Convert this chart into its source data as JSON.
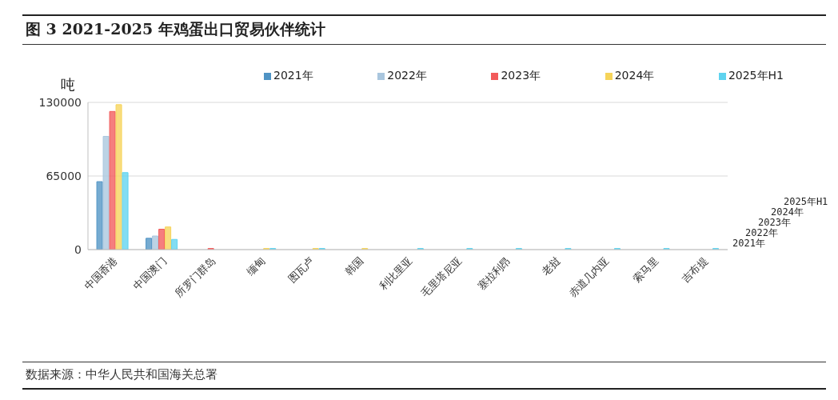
{
  "chart_data": {
    "type": "bar",
    "title": "图 3 2021-2025 年鸡蛋出口贸易伙伴统计",
    "ylabel": "吨",
    "categories": [
      "中国香港",
      "中国澳门",
      "所罗门群岛",
      "缅甸",
      "图瓦卢",
      "韩国",
      "利比里亚",
      "毛里塔尼亚",
      "塞拉利昂",
      "老挝",
      "赤道几内亚",
      "索马里",
      "吉布提"
    ],
    "series": [
      {
        "name": "2021年",
        "color": "#4f93c4",
        "values": [
          60000,
          10000,
          null,
          null,
          null,
          null,
          null,
          null,
          null,
          null,
          null,
          null,
          null
        ]
      },
      {
        "name": "2022年",
        "color": "#a9c6de",
        "values": [
          100000,
          12000,
          null,
          null,
          null,
          null,
          null,
          null,
          null,
          null,
          null,
          null,
          null
        ]
      },
      {
        "name": "2023年",
        "color": "#f25a5a",
        "values": [
          122000,
          18000,
          1000,
          null,
          null,
          null,
          null,
          null,
          null,
          null,
          null,
          null,
          null
        ]
      },
      {
        "name": "2024年",
        "color": "#f6d45a",
        "values": [
          128000,
          20000,
          null,
          1000,
          1000,
          1000,
          null,
          null,
          null,
          null,
          null,
          null,
          null
        ]
      },
      {
        "name": "2025年H1",
        "color": "#5fd3ef",
        "values": [
          68000,
          9000,
          null,
          1000,
          1000,
          null,
          1000,
          1000,
          1000,
          1000,
          1000,
          1000,
          1000
        ]
      }
    ],
    "ylim": [
      0,
      130000
    ],
    "yticks": [
      0,
      65000,
      130000
    ],
    "grid": "y",
    "legend": "top",
    "annotations": [
      "数据来源：中华人民共和国海关总署"
    ]
  }
}
